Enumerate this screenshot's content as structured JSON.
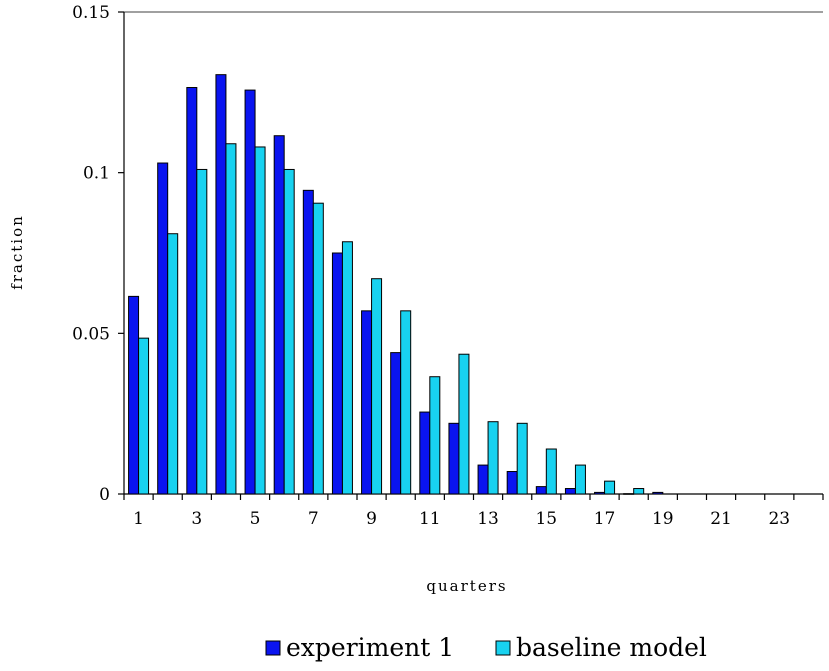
{
  "chart_data": {
    "type": "bar",
    "title": "",
    "xlabel": "quarters",
    "ylabel": "fraction",
    "ylim": [
      0,
      0.15
    ],
    "yticks": [
      0,
      0.05,
      0.1,
      0.15
    ],
    "ytick_labels": [
      "0",
      "0.05",
      "0.1",
      "0.15"
    ],
    "categories": [
      "1",
      "2",
      "3",
      "4",
      "5",
      "6",
      "7",
      "8",
      "9",
      "10",
      "11",
      "12",
      "13",
      "14",
      "15",
      "16",
      "17",
      "18",
      "19",
      "20",
      "21",
      "22",
      "23",
      "24"
    ],
    "xtick_labels": [
      "1",
      "3",
      "5",
      "7",
      "9",
      "11",
      "13",
      "15",
      "17",
      "19",
      "21",
      "23"
    ],
    "grid": false,
    "legend_position": "bottom",
    "series": [
      {
        "name": "experiment 1",
        "color": "#0A14F0",
        "values": [
          0.0615,
          0.103,
          0.1265,
          0.1305,
          0.1257,
          0.1115,
          0.0945,
          0.075,
          0.057,
          0.044,
          0.0255,
          0.022,
          0.009,
          0.007,
          0.0023,
          0.0017,
          0.0005,
          0.0001,
          0.0005,
          0,
          0,
          0,
          0,
          0
        ]
      },
      {
        "name": "baseline model",
        "color": "#18D2F0",
        "values": [
          0.0485,
          0.081,
          0.101,
          0.109,
          0.108,
          0.101,
          0.0905,
          0.0785,
          0.067,
          0.057,
          0.0365,
          0.0435,
          0.0225,
          0.022,
          0.014,
          0.009,
          0.004,
          0.0017,
          0,
          0,
          0,
          0,
          0,
          0
        ]
      }
    ]
  }
}
